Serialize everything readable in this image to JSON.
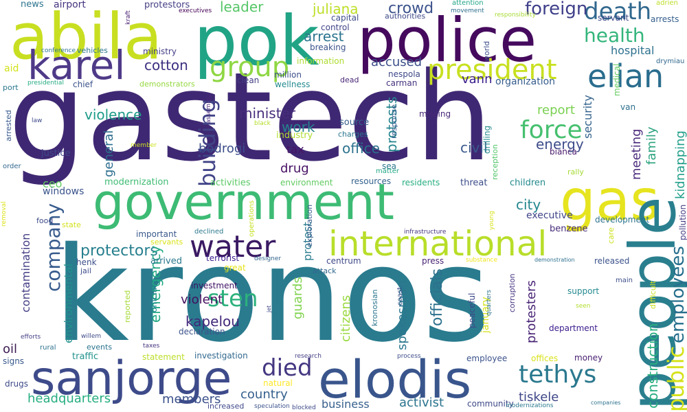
{
  "words": [
    {
      "text": "gastech",
      "color": "#3f2873"
    },
    {
      "text": "kronos",
      "color": "#2a7b8e"
    },
    {
      "text": "government",
      "color": "#3dbb74"
    },
    {
      "text": "police",
      "color": "#450a5d"
    },
    {
      "text": "abila",
      "color": "#c8df21"
    },
    {
      "text": "pok",
      "color": "#21a485"
    },
    {
      "text": "karel",
      "color": "#4f3a88"
    },
    {
      "text": "gas",
      "color": "#e6e41f"
    },
    {
      "text": "people",
      "color": "#2a7f8e"
    },
    {
      "text": "international",
      "color": "#b8de29"
    },
    {
      "text": "sanjorge",
      "color": "#3e4b8a"
    },
    {
      "text": "elodis",
      "color": "#39558c"
    },
    {
      "text": "water",
      "color": "#3b1a63"
    },
    {
      "text": "president",
      "color": "#c8e020"
    },
    {
      "text": "elian",
      "color": "#2a6d8e"
    },
    {
      "text": "health",
      "color": "#33b57b"
    },
    {
      "text": "death",
      "color": "#31688e"
    },
    {
      "text": "group",
      "color": "#8fd744"
    },
    {
      "text": "force",
      "color": "#46c06f"
    },
    {
      "text": "foreign",
      "color": "#3f3f8a"
    },
    {
      "text": "employees",
      "color": "#276f8d"
    },
    {
      "text": "company",
      "color": "#375b8d"
    },
    {
      "text": "tethys",
      "color": "#2a788e"
    },
    {
      "text": "public",
      "color": "#d5e21a"
    },
    {
      "text": "building",
      "color": "#414487"
    },
    {
      "text": "died",
      "color": "#453781"
    },
    {
      "text": "sten",
      "color": "#2db27d"
    },
    {
      "text": "construction",
      "color": "#29af7f"
    },
    {
      "text": "crowd",
      "color": "#3b528b"
    },
    {
      "text": "violence",
      "color": "#1e9c89"
    },
    {
      "text": "protectors",
      "color": "#277f8e"
    },
    {
      "text": "country",
      "color": "#35608d"
    },
    {
      "text": "arrest",
      "color": "#2b748e"
    },
    {
      "text": "protests",
      "color": "#25848e"
    },
    {
      "text": "juliana",
      "color": "#bddf26"
    },
    {
      "text": "cotton",
      "color": "#3b2f80"
    },
    {
      "text": "leader",
      "color": "#55c667"
    },
    {
      "text": "hospital",
      "color": "#2d708e"
    },
    {
      "text": "security",
      "color": "#33628d"
    },
    {
      "text": "minister",
      "color": "#472d7b"
    },
    {
      "text": "work",
      "color": "#26828e"
    },
    {
      "text": "office",
      "color": "#2c728e"
    },
    {
      "text": "energy",
      "color": "#3e4c8a"
    },
    {
      "text": "civil",
      "color": "#38588c"
    },
    {
      "text": "meeting",
      "color": "#4b2c7d"
    },
    {
      "text": "family",
      "color": "#2ca37e"
    },
    {
      "text": "kidnapping",
      "color": "#1f9e89"
    },
    {
      "text": "report",
      "color": "#7ad151"
    },
    {
      "text": "accused",
      "color": "#3c4f8a"
    },
    {
      "text": "vann",
      "color": "#3b1c8c"
    },
    {
      "text": "organization",
      "color": "#365d8d"
    },
    {
      "text": "city",
      "color": "#24878e"
    },
    {
      "text": "executive",
      "color": "#404588"
    },
    {
      "text": "drug",
      "color": "#471164"
    },
    {
      "text": "tax",
      "color": "#471365"
    },
    {
      "text": "bodrogi",
      "color": "#3c4d8a"
    },
    {
      "text": "general",
      "color": "#2e6e8e"
    },
    {
      "text": "kapelou",
      "color": "#42287a"
    },
    {
      "text": "violent",
      "color": "#440f5e"
    },
    {
      "text": "emergency",
      "color": "#22a884"
    },
    {
      "text": "guards",
      "color": "#7fd34e"
    },
    {
      "text": "officials",
      "color": "#2d718e"
    },
    {
      "text": "spokesman",
      "color": "#2a768e"
    },
    {
      "text": "citizens",
      "color": "#99d83d"
    },
    {
      "text": "protesters",
      "color": "#482475"
    },
    {
      "text": "activist",
      "color": "#2b748e"
    },
    {
      "text": "tiskele",
      "color": "#3f4788"
    },
    {
      "text": "members",
      "color": "#3b518b"
    },
    {
      "text": "business",
      "color": "#355f8d"
    },
    {
      "text": "headquarters",
      "color": "#26ad81"
    },
    {
      "text": "contamination",
      "color": "#433e85"
    },
    {
      "text": "environmental",
      "color": "#21918c"
    },
    {
      "text": "oil",
      "color": "#3b1b53"
    },
    {
      "text": "protest",
      "color": "#297b8e"
    },
    {
      "text": "january",
      "color": "#d5e21a"
    },
    {
      "text": "ceo",
      "color": "#63cb5f"
    },
    {
      "text": "windows",
      "color": "#3a538b"
    },
    {
      "text": "modernization",
      "color": "#3fbc73"
    },
    {
      "text": "activities",
      "color": "#5ac864"
    },
    {
      "text": "environment",
      "color": "#60ca60"
    },
    {
      "text": "resources",
      "color": "#33628d"
    },
    {
      "text": "residents",
      "color": "#27ad81"
    },
    {
      "text": "threat",
      "color": "#3d4e8a"
    },
    {
      "text": "children",
      "color": "#23898e"
    },
    {
      "text": "benzene",
      "color": "#472c7a"
    },
    {
      "text": "development",
      "color": "#2c738e"
    },
    {
      "text": "pollution",
      "color": "#433d84"
    },
    {
      "text": "justice",
      "color": "#3e4a89"
    },
    {
      "text": "industry",
      "color": "#b0dd2f"
    },
    {
      "text": "source",
      "color": "#35608d"
    },
    {
      "text": "charges",
      "color": "#2a768e"
    },
    {
      "text": "sea",
      "color": "#2a788e"
    },
    {
      "text": "matter",
      "color": "#22a785"
    },
    {
      "text": "response",
      "color": "#375b8d"
    },
    {
      "text": "missing",
      "color": "#482878"
    },
    {
      "text": "drilling",
      "color": "#238a8d"
    },
    {
      "text": "reception",
      "color": "#52c569"
    },
    {
      "text": "bianca",
      "color": "#48186a"
    },
    {
      "text": "van",
      "color": "#2d708e"
    },
    {
      "text": "rally",
      "color": "#a5db36"
    },
    {
      "text": "drymiau",
      "color": "#31688e"
    },
    {
      "text": "adrien",
      "color": "#bade28"
    },
    {
      "text": "arrests",
      "color": "#355e8d"
    },
    {
      "text": "medical",
      "color": "#63cb5f"
    },
    {
      "text": "servant",
      "color": "#3e4989"
    },
    {
      "text": "news",
      "color": "#2b748e"
    },
    {
      "text": "airport",
      "color": "#46337f"
    },
    {
      "text": "protestors",
      "color": "#433e85"
    },
    {
      "text": "capital",
      "color": "#3d4d8a"
    },
    {
      "text": "control",
      "color": "#404588"
    },
    {
      "text": "attention",
      "color": "#20a486"
    },
    {
      "text": "movement",
      "color": "#2e6f8e"
    },
    {
      "text": "executives",
      "color": "#440154"
    },
    {
      "text": "authorities",
      "color": "#3e4a89"
    },
    {
      "text": "responsibility",
      "color": "#a8db34"
    },
    {
      "text": "world",
      "color": "#3d4d8a"
    },
    {
      "text": "kraft",
      "color": "#482071"
    },
    {
      "text": "aid",
      "color": "#d2e21b"
    },
    {
      "text": "conference",
      "color": "#2c728e"
    },
    {
      "text": "vehicles",
      "color": "#2b748e"
    },
    {
      "text": "ministry",
      "color": "#433e85"
    },
    {
      "text": "breaking",
      "color": "#3a538b"
    },
    {
      "text": "information",
      "color": "#addc30"
    },
    {
      "text": "million",
      "color": "#3c4f8a"
    },
    {
      "text": "nespola",
      "color": "#3f4889"
    },
    {
      "text": "carman",
      "color": "#46327e"
    },
    {
      "text": "dead",
      "color": "#482576"
    },
    {
      "text": "wellness",
      "color": "#23898e"
    },
    {
      "text": "clean",
      "color": "#433e85"
    },
    {
      "text": "chief",
      "color": "#3b528b"
    },
    {
      "text": "demonstrators",
      "color": "#95d840"
    },
    {
      "text": "presidential",
      "color": "#25ab82"
    },
    {
      "text": "port",
      "color": "#2b758e"
    },
    {
      "text": "arrested",
      "color": "#38598c"
    },
    {
      "text": "law",
      "color": "#3e4989"
    },
    {
      "text": "assembly",
      "color": "#482979"
    },
    {
      "text": "black",
      "color": "#b5de2b"
    },
    {
      "text": "member",
      "color": "#cde11d"
    },
    {
      "text": "order",
      "color": "#31688e"
    },
    {
      "text": "removal",
      "color": "#dde318"
    },
    {
      "text": "food",
      "color": "#3e4a89"
    },
    {
      "text": "state",
      "color": "#d2e21b"
    },
    {
      "text": "operations",
      "color": "#c5e021"
    },
    {
      "text": "declined",
      "color": "#2a788e"
    },
    {
      "text": "important",
      "color": "#38588c"
    },
    {
      "text": "servants",
      "color": "#dae319"
    },
    {
      "text": "terrorist",
      "color": "#3b1c8c"
    },
    {
      "text": "designer",
      "color": "#32648e"
    },
    {
      "text": "great",
      "color": "#e5e419"
    },
    {
      "text": "exploration",
      "color": "#375a8c"
    },
    {
      "text": "centrum",
      "color": "#3f4889"
    },
    {
      "text": "infrastructure",
      "color": "#46337f"
    },
    {
      "text": "press",
      "color": "#482475"
    },
    {
      "text": "substance",
      "color": "#f1e51d"
    },
    {
      "text": "demonstration",
      "color": "#2d708e"
    },
    {
      "text": "released",
      "color": "#3b528b"
    },
    {
      "text": "care",
      "color": "#cde11d"
    },
    {
      "text": "young",
      "color": "#d8e219"
    },
    {
      "text": "henk",
      "color": "#3c4f8a"
    },
    {
      "text": "jail",
      "color": "#3e4c8a"
    },
    {
      "text": "arrived",
      "color": "#2a788e"
    },
    {
      "text": "attack",
      "color": "#31688e"
    },
    {
      "text": "investment",
      "color": "#3c0f63"
    },
    {
      "text": "reported",
      "color": "#a5db36"
    },
    {
      "text": "official",
      "color": "#25838e"
    },
    {
      "text": "declaration",
      "color": "#3b528b"
    },
    {
      "text": "jet",
      "color": "#3f4788"
    },
    {
      "text": "coast",
      "color": "#3b528b"
    },
    {
      "text": "quarters",
      "color": "#2c728e"
    },
    {
      "text": "corruption",
      "color": "#453581"
    },
    {
      "text": "peaceful",
      "color": "#3e4989"
    },
    {
      "text": "kronosian",
      "color": "#2a768e"
    },
    {
      "text": "support",
      "color": "#23898e"
    },
    {
      "text": "seen",
      "color": "#b2dd2d"
    },
    {
      "text": "difficult",
      "color": "#cde11d"
    },
    {
      "text": "main",
      "color": "#3d4e8a"
    },
    {
      "text": "department",
      "color": "#3b1c8c"
    },
    {
      "text": "efforts",
      "color": "#433e85"
    },
    {
      "text": "willem",
      "color": "#3e4a89"
    },
    {
      "text": "rural",
      "color": "#2c728e"
    },
    {
      "text": "taxes",
      "color": "#46327e"
    },
    {
      "text": "events",
      "color": "#2b748e"
    },
    {
      "text": "traffic",
      "color": "#20928c"
    },
    {
      "text": "statement",
      "color": "#bade28"
    },
    {
      "text": "investigation",
      "color": "#31688e"
    },
    {
      "text": "research",
      "color": "#433e85"
    },
    {
      "text": "process",
      "color": "#3e4c8a"
    },
    {
      "text": "employee",
      "color": "#3b528b"
    },
    {
      "text": "offices",
      "color": "#d8e219"
    },
    {
      "text": "money",
      "color": "#482071"
    },
    {
      "text": "signs",
      "color": "#38598c"
    },
    {
      "text": "drugs",
      "color": "#3e4a89"
    },
    {
      "text": "natural",
      "color": "#fde725"
    },
    {
      "text": "blocked",
      "color": "#3e4989"
    },
    {
      "text": "increased",
      "color": "#3f4889"
    },
    {
      "text": "speculation",
      "color": "#3b528b"
    },
    {
      "text": "community",
      "color": "#3e4989"
    },
    {
      "text": "modernizations",
      "color": "#2a788e"
    },
    {
      "text": "companies",
      "color": "#2c728e"
    }
  ]
}
